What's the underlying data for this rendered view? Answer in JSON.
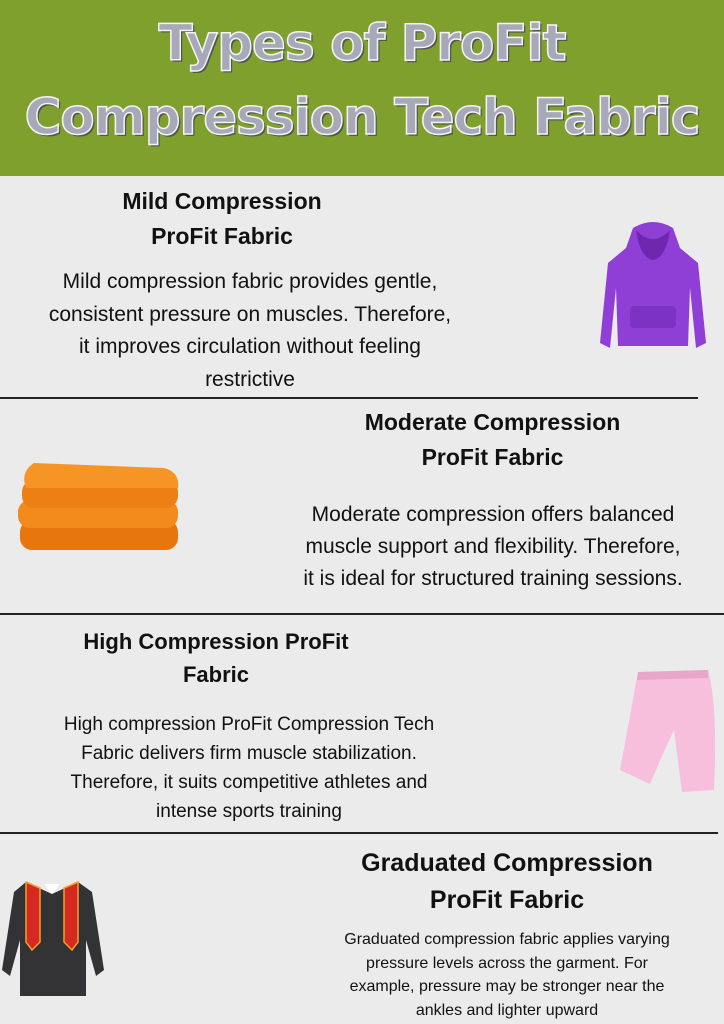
{
  "header": {
    "title_line1": "Types of ProFit",
    "title_line2": "Compression Tech Fabric",
    "color": "#7fa02c"
  },
  "sections": [
    {
      "title_line1": "Mild Compression",
      "title_line2": "ProFit Fabric",
      "body": [
        "Mild compression fabric provides gentle,",
        "consistent pressure on muscles. Therefore,",
        "it improves circulation without feeling",
        "restrictive"
      ],
      "image": "purple-hoodie"
    },
    {
      "title_line1": "Moderate Compression",
      "title_line2": "ProFit Fabric",
      "body": [
        "Moderate compression offers balanced",
        "muscle support and flexibility. Therefore,",
        "it is ideal for structured training sessions."
      ],
      "image": "folded-orange-fabric"
    },
    {
      "title_line1": "High Compression ProFit",
      "title_line2": "Fabric",
      "body": [
        "High compression ProFit Compression Tech",
        "Fabric delivers firm muscle stabilization.",
        "Therefore, it suits competitive athletes and",
        "intense sports training"
      ],
      "image": "pink-shorts"
    },
    {
      "title_line1": "Graduated Compression",
      "title_line2": "ProFit Fabric",
      "body": [
        "Graduated compression fabric applies varying",
        "pressure levels across the garment. For",
        "example, pressure may be stronger near the",
        "ankles and lighter upward"
      ],
      "image": "graduation-gown"
    }
  ]
}
